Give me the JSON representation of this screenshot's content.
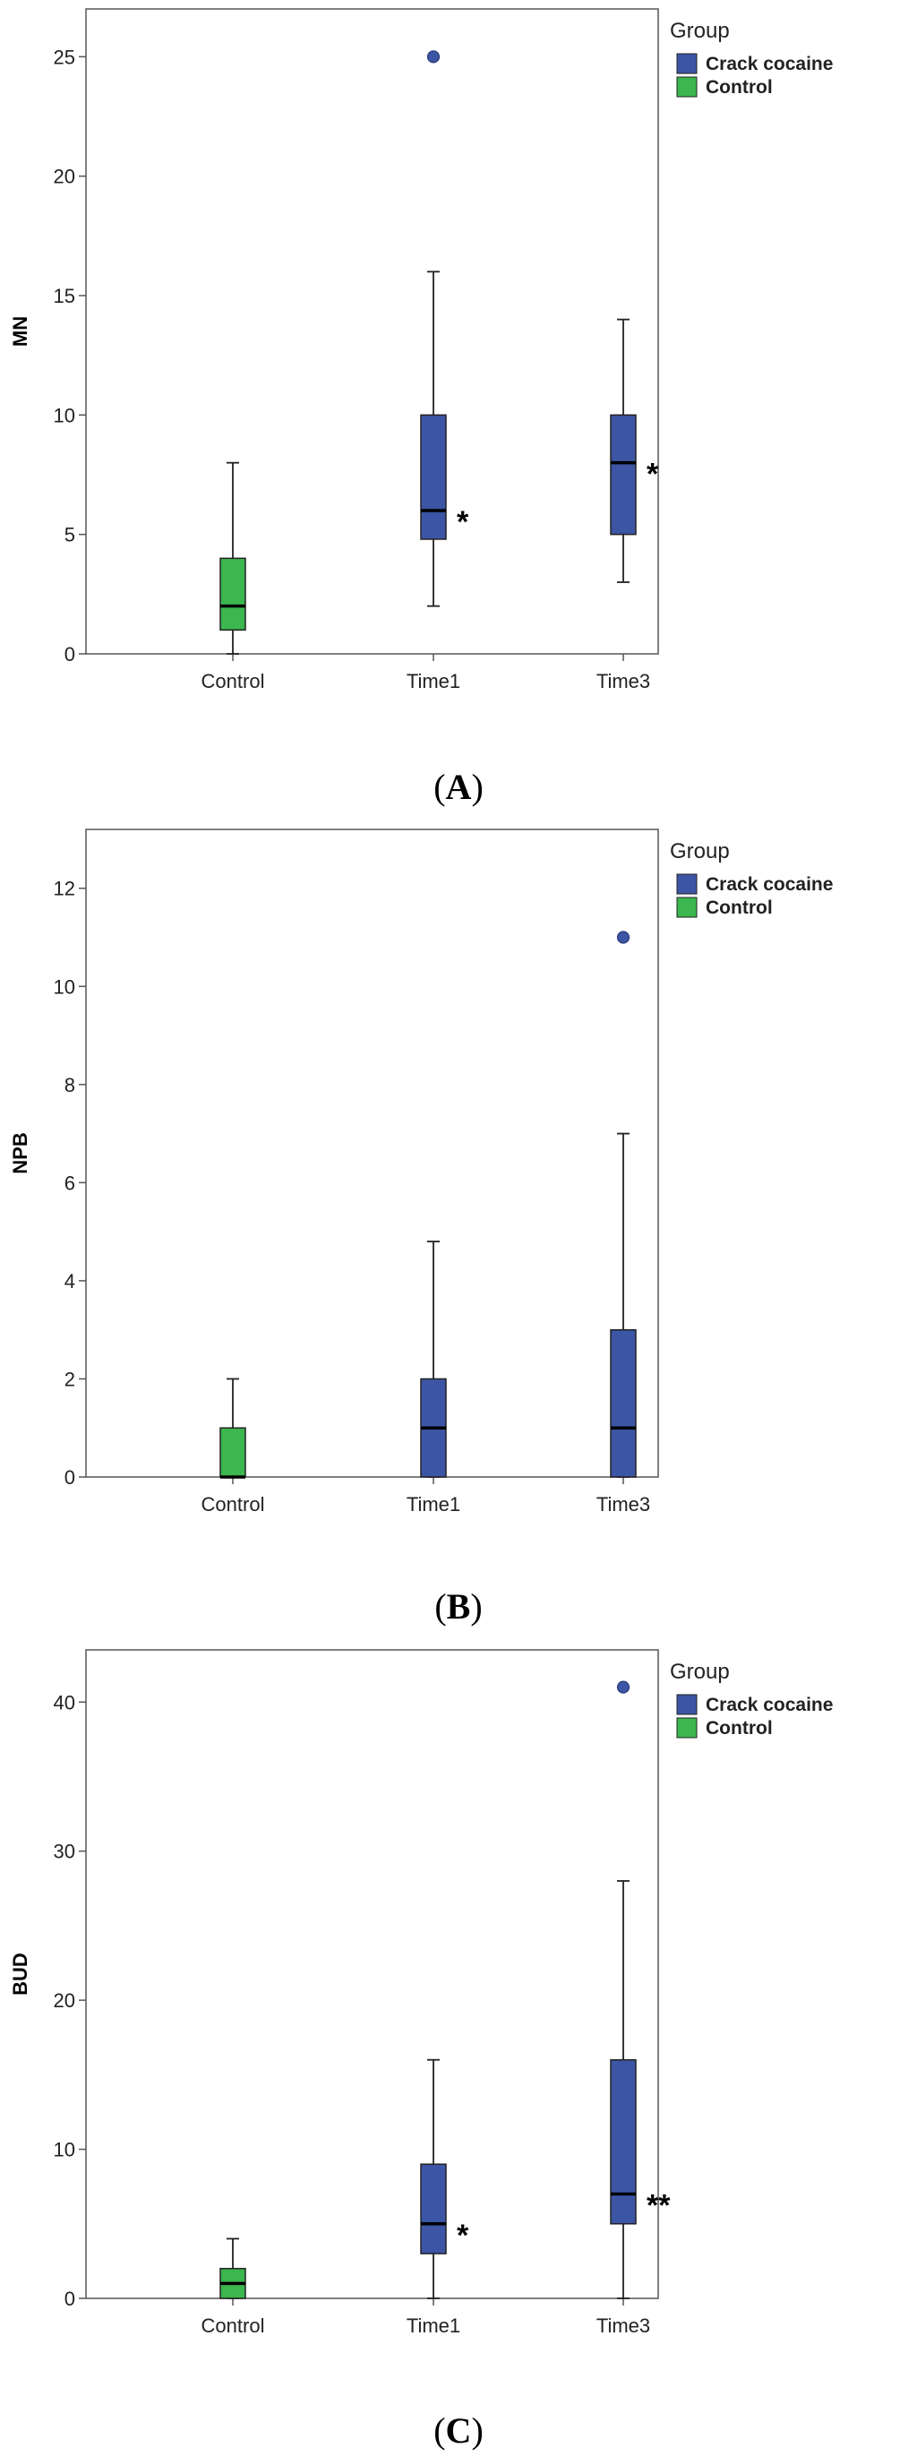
{
  "chart_data": [
    {
      "type": "boxplot",
      "panel_label": "A",
      "ylabel": "MN",
      "ylim": [
        0,
        27
      ],
      "yticks": [
        0,
        5,
        10,
        15,
        20,
        25
      ],
      "categories": [
        "Control",
        "Time1",
        "Time3"
      ],
      "legend": {
        "title": "Group",
        "entries": [
          {
            "name": "Crack cocaine",
            "color": "#3c55a4"
          },
          {
            "name": "Control",
            "color": "#3cb64e"
          }
        ]
      },
      "boxes": [
        {
          "category": "Control",
          "group": "Control",
          "min": 0,
          "q1": 1,
          "median": 2,
          "q3": 4,
          "max": 8,
          "outliers": [],
          "annotation": ""
        },
        {
          "category": "Time1",
          "group": "Crack cocaine",
          "min": 2,
          "q1": 4.8,
          "median": 6,
          "q3": 10,
          "max": 16,
          "outliers": [
            25
          ],
          "annotation": "*"
        },
        {
          "category": "Time3",
          "group": "Crack cocaine",
          "min": 3,
          "q1": 5,
          "median": 8,
          "q3": 10,
          "max": 14,
          "outliers": [],
          "annotation": "*"
        }
      ]
    },
    {
      "type": "boxplot",
      "panel_label": "B",
      "ylabel": "NPB",
      "ylim": [
        0,
        13.2
      ],
      "yticks": [
        0,
        2,
        4,
        6,
        8,
        10,
        12
      ],
      "categories": [
        "Control",
        "Time1",
        "Time3"
      ],
      "legend": {
        "title": "Group",
        "entries": [
          {
            "name": "Crack cocaine",
            "color": "#3c55a4"
          },
          {
            "name": "Control",
            "color": "#3cb64e"
          }
        ]
      },
      "boxes": [
        {
          "category": "Control",
          "group": "Control",
          "min": 0,
          "q1": 0,
          "median": 0,
          "q3": 1,
          "max": 2,
          "outliers": [],
          "annotation": ""
        },
        {
          "category": "Time1",
          "group": "Crack cocaine",
          "min": 0,
          "q1": 0,
          "median": 1,
          "q3": 2,
          "max": 4.8,
          "outliers": [],
          "annotation": ""
        },
        {
          "category": "Time3",
          "group": "Crack cocaine",
          "min": 0,
          "q1": 0,
          "median": 1,
          "q3": 3,
          "max": 7,
          "outliers": [
            11
          ],
          "annotation": ""
        }
      ]
    },
    {
      "type": "boxplot",
      "panel_label": "C",
      "ylabel": "BUD",
      "ylim": [
        0,
        43.5
      ],
      "yticks": [
        0,
        10,
        20,
        30,
        40
      ],
      "categories": [
        "Control",
        "Time1",
        "Time3"
      ],
      "legend": {
        "title": "Group",
        "entries": [
          {
            "name": "Crack cocaine",
            "color": "#3c55a4"
          },
          {
            "name": "Control",
            "color": "#3cb64e"
          }
        ]
      },
      "boxes": [
        {
          "category": "Control",
          "group": "Control",
          "min": 0,
          "q1": 0,
          "median": 1,
          "q3": 2,
          "max": 4,
          "outliers": [],
          "annotation": ""
        },
        {
          "category": "Time1",
          "group": "Crack cocaine",
          "min": 0,
          "q1": 3,
          "median": 5,
          "q3": 9,
          "max": 16,
          "outliers": [],
          "annotation": "*"
        },
        {
          "category": "Time3",
          "group": "Crack cocaine",
          "min": 0,
          "q1": 5,
          "median": 7,
          "q3": 16,
          "max": 28,
          "outliers": [
            41
          ],
          "annotation": "**"
        }
      ]
    }
  ]
}
